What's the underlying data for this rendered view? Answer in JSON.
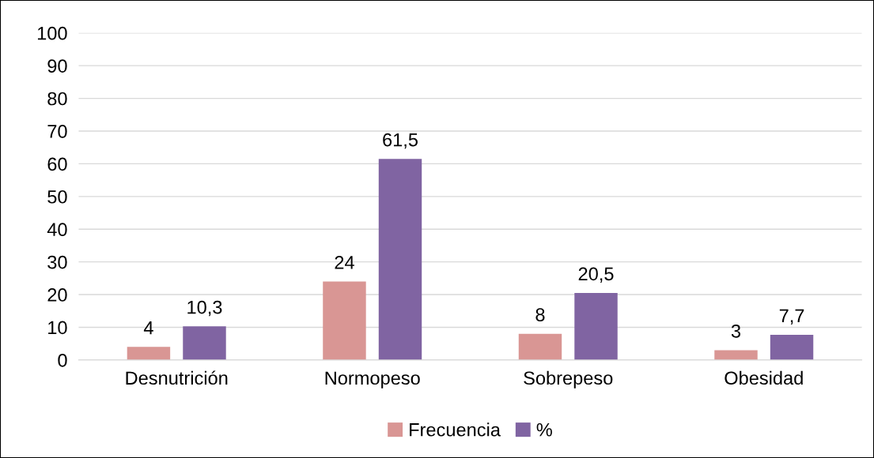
{
  "chart_data": {
    "type": "bar",
    "categories": [
      "Desnutrición",
      "Normopeso",
      "Sobrepeso",
      "Obesidad"
    ],
    "series": [
      {
        "name": "Frecuencia",
        "color": "#d99694",
        "values": [
          4,
          24,
          8,
          3
        ],
        "value_labels": [
          "4",
          "24",
          "8",
          "3"
        ]
      },
      {
        "name": "%",
        "color": "#8064a2",
        "values": [
          10.3,
          61.5,
          20.5,
          7.7
        ],
        "value_labels": [
          "10,3",
          "61,5",
          "20,5",
          "7,7"
        ]
      }
    ],
    "ylim": [
      0,
      100
    ],
    "yticks": [
      0,
      10,
      20,
      30,
      40,
      50,
      60,
      70,
      80,
      90,
      100
    ],
    "grid": "y",
    "legend": "bottom"
  }
}
